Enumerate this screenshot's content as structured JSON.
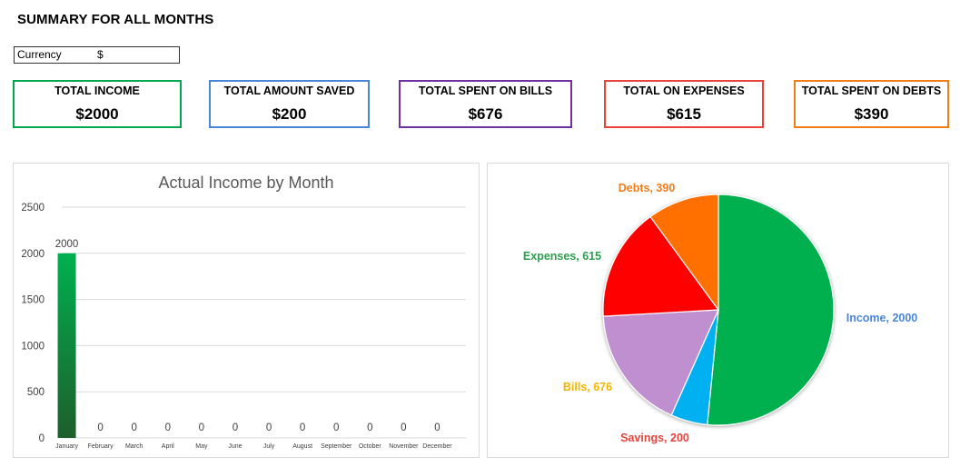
{
  "header": {
    "title": "SUMMARY FOR ALL MONTHS",
    "currency_label": "Currency",
    "currency_value": "$"
  },
  "cards": [
    {
      "label": "TOTAL INCOME",
      "value": "$2000",
      "color": "#00a650"
    },
    {
      "label": "TOTAL AMOUNT SAVED",
      "value": "$200",
      "color": "#4a86d8"
    },
    {
      "label": "TOTAL SPENT ON BILLS",
      "value": "$676",
      "color": "#7030a0"
    },
    {
      "label": "TOTAL ON EXPENSES",
      "value": "$615",
      "color": "#e8433b"
    },
    {
      "label": "TOTAL SPENT ON DEBTS",
      "value": "$390",
      "color": "#f07d1a"
    }
  ],
  "chart_data": [
    {
      "type": "bar",
      "title": "Actual Income by Month",
      "categories": [
        "January",
        "February",
        "March",
        "April",
        "May",
        "June",
        "July",
        "August",
        "September",
        "October",
        "November",
        "December"
      ],
      "values": [
        2000,
        0,
        0,
        0,
        0,
        0,
        0,
        0,
        0,
        0,
        0,
        0
      ],
      "data_labels": [
        "2000",
        "0",
        "0",
        "0",
        "0",
        "0",
        "0",
        "0",
        "0",
        "0",
        "0",
        "0"
      ],
      "ylim": [
        0,
        2500
      ],
      "yticks": [
        "0",
        "500",
        "1000",
        "1500",
        "2000",
        "2500"
      ],
      "ytick_values": [
        0,
        500,
        1000,
        1500,
        2000,
        2500
      ],
      "grid": true,
      "bar_color_top": "#00b050",
      "bar_color_bottom": "#1d5e2c"
    },
    {
      "type": "pie",
      "slices": [
        {
          "label": "Income",
          "value": 2000,
          "display": "Income, 2000",
          "color": "#00b050",
          "label_color": "#4a86d8"
        },
        {
          "label": "Savings",
          "value": 200,
          "display": "Savings, 200",
          "color": "#00b0f0",
          "label_color": "#e8433b"
        },
        {
          "label": "Bills",
          "value": 676,
          "display": "Bills, 676",
          "color": "#c08fd0",
          "label_color": "#f2b400"
        },
        {
          "label": "Expenses",
          "value": 615,
          "display": "Expenses, 615",
          "color": "#ff0000",
          "label_color": "#2e9e4f"
        },
        {
          "label": "Debts",
          "value": 390,
          "display": "Debts, 390",
          "color": "#ff7000",
          "label_color": "#f07d1a"
        }
      ]
    }
  ]
}
